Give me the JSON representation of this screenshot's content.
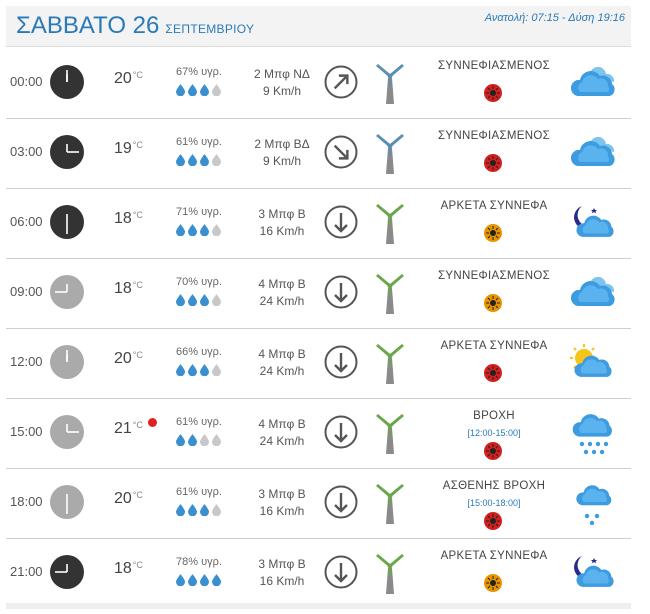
{
  "header": {
    "day": "ΣΑΒΒΑΤΟ 26",
    "month": "ΣΕΠΤΕΜΒΡΙΟΥ",
    "sun_info": "Ανατολή: 07:15  - Δύση 19:16"
  },
  "temp_unit": "°C",
  "rows": [
    {
      "time": "00:00",
      "clock_style": "night",
      "hand_angle": 0,
      "temp": "20",
      "rain_dot": false,
      "humidity": "67% υγρ.",
      "drops_filled": 3,
      "wind_bf": "2 Μπφ ΝΔ",
      "wind_kmh": "9 Km/h",
      "wind_arrow": "north-east",
      "turbine_color": "#5a8fb3",
      "condition": "ΣΥΝΝΕΦΙΑΣΜΕΝΟΣ",
      "condition_period": "",
      "uv_color": "red",
      "icon": "cloudy-icon"
    },
    {
      "time": "03:00",
      "clock_style": "night",
      "hand_angle": 90,
      "temp": "19",
      "rain_dot": false,
      "humidity": "61% υγρ.",
      "drops_filled": 3,
      "wind_bf": "2 Μπφ ΒΔ",
      "wind_kmh": "9 Km/h",
      "wind_arrow": "south-east",
      "turbine_color": "#5a8fb3",
      "condition": "ΣΥΝΝΕΦΙΑΣΜΕΝΟΣ",
      "condition_period": "",
      "uv_color": "red",
      "icon": "cloudy-icon"
    },
    {
      "time": "06:00",
      "clock_style": "night",
      "hand_angle": 180,
      "temp": "18",
      "rain_dot": false,
      "humidity": "71% υγρ.",
      "drops_filled": 3,
      "wind_bf": "3 Μπφ Β",
      "wind_kmh": "16 Km/h",
      "wind_arrow": "south",
      "turbine_color": "#6aa64a",
      "condition": "ΑΡΚΕΤΑ ΣΥΝΝΕΦΑ",
      "condition_period": "",
      "uv_color": "orange",
      "icon": "moon-cloud-icon"
    },
    {
      "time": "09:00",
      "clock_style": "day",
      "hand_angle": 270,
      "temp": "18",
      "rain_dot": false,
      "humidity": "70% υγρ.",
      "drops_filled": 3,
      "wind_bf": "4 Μπφ Β",
      "wind_kmh": "24 Km/h",
      "wind_arrow": "south",
      "turbine_color": "#6aa64a",
      "condition": "ΣΥΝΝΕΦΙΑΣΜΕΝΟΣ",
      "condition_period": "",
      "uv_color": "orange",
      "icon": "cloudy-icon"
    },
    {
      "time": "12:00",
      "clock_style": "day",
      "hand_angle": 0,
      "temp": "20",
      "rain_dot": false,
      "humidity": "66% υγρ.",
      "drops_filled": 3,
      "wind_bf": "4 Μπφ Β",
      "wind_kmh": "24 Km/h",
      "wind_arrow": "south",
      "turbine_color": "#6aa64a",
      "condition": "ΑΡΚΕΤΑ ΣΥΝΝΕΦΑ",
      "condition_period": "",
      "uv_color": "red",
      "icon": "sun-cloud-icon"
    },
    {
      "time": "15:00",
      "clock_style": "day",
      "hand_angle": 90,
      "temp": "21",
      "rain_dot": true,
      "humidity": "61% υγρ.",
      "drops_filled": 2,
      "wind_bf": "4 Μπφ Β",
      "wind_kmh": "24 Km/h",
      "wind_arrow": "south",
      "turbine_color": "#6aa64a",
      "condition": "ΒΡΟΧΗ",
      "condition_period": "[12:00-15:00]",
      "uv_color": "red",
      "icon": "rain-icon"
    },
    {
      "time": "18:00",
      "clock_style": "day",
      "hand_angle": 180,
      "temp": "20",
      "rain_dot": false,
      "humidity": "61% υγρ.",
      "drops_filled": 3,
      "wind_bf": "3 Μπφ Β",
      "wind_kmh": "16 Km/h",
      "wind_arrow": "south",
      "turbine_color": "#6aa64a",
      "condition": "ΑΣΘΕΝΗΣ ΒΡΟΧΗ",
      "condition_period": "[15:00-18:00]",
      "uv_color": "red",
      "icon": "light-rain-icon"
    },
    {
      "time": "21:00",
      "clock_style": "night",
      "hand_angle": 270,
      "temp": "18",
      "rain_dot": false,
      "humidity": "78% υγρ.",
      "drops_filled": 4,
      "wind_bf": "3 Μπφ Β",
      "wind_kmh": "16 Km/h",
      "wind_arrow": "south",
      "turbine_color": "#6aa64a",
      "condition": "ΑΡΚΕΤΑ ΣΥΝΝΕΦΑ",
      "condition_period": "",
      "uv_color": "orange",
      "icon": "moon-cloud-icon"
    }
  ]
}
